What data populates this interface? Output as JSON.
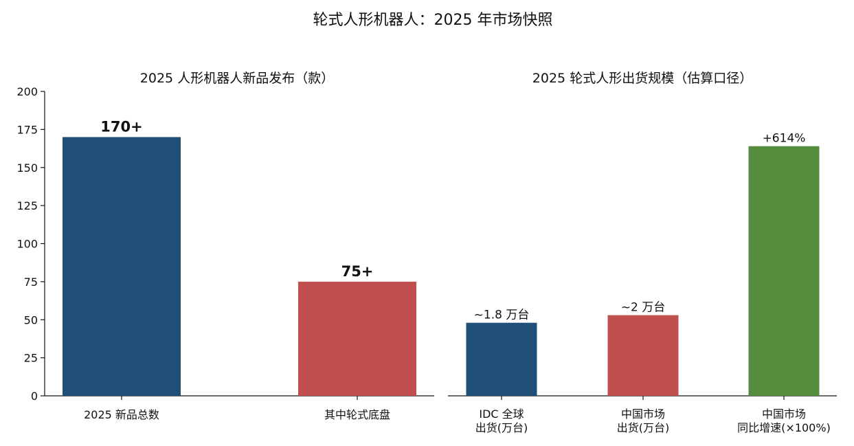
{
  "figure": {
    "title": "轮式人形机器人：2025 年市场快照"
  },
  "chart_data": [
    {
      "type": "bar",
      "title": "2025 人形机器人新品发布（款）",
      "categories": [
        "2025 新品总数",
        "其中轮式底盘"
      ],
      "values": [
        170,
        75
      ],
      "data_labels": [
        "170+",
        "75+"
      ],
      "colors": [
        "#1f4e79",
        "#c0504d"
      ],
      "ylim": [
        0,
        200
      ],
      "yticks": [
        0,
        25,
        50,
        75,
        100,
        125,
        150,
        175,
        200
      ],
      "grid": false
    },
    {
      "type": "bar",
      "title": "2025 轮式人形出货规模（估算口径）",
      "categories": [
        [
          "IDC 全球",
          "出货(万台)"
        ],
        [
          "中国市场",
          "出货(万台)"
        ],
        [
          "中国市场",
          "同比增速(×100%)"
        ]
      ],
      "values": [
        48,
        53,
        164
      ],
      "data_labels": [
        "~1.8 万台",
        "~2 万台",
        "+614%"
      ],
      "colors": [
        "#1f4e79",
        "#c0504d",
        "#548b3d"
      ],
      "ylim": [
        0,
        200
      ],
      "grid": false
    }
  ]
}
